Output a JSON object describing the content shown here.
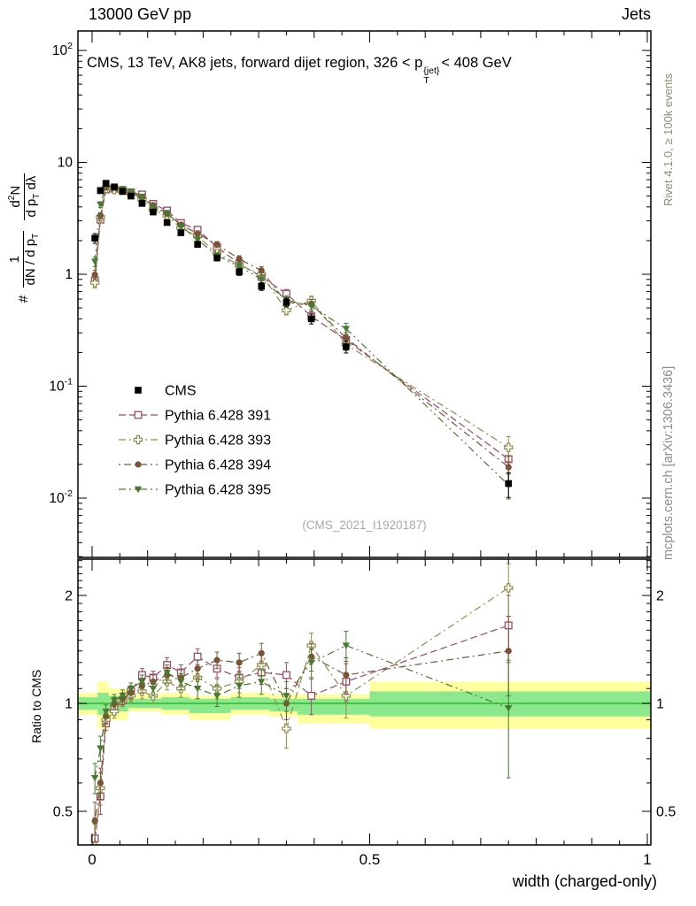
{
  "header": {
    "left": "13000 GeV pp",
    "right": "Jets"
  },
  "title": {
    "prefix": "CMS, 13 TeV, AK8 jets, forward dijet region, 326 < p",
    "sup": "{jet}",
    "sub": "T",
    "suffix": "< 408 GeV"
  },
  "watermark": "(CMS_2021_I1920187)",
  "side_labels": {
    "rivet": "Rivet 4.1.0, ≥ 100k events",
    "mcplots": "mcplots.cern.ch [arXiv:1306.3436]"
  },
  "axes": {
    "x_title": "width (charged-only)",
    "ratio_y_title": "Ratio to CMS",
    "main_y_label": {
      "prefix": "#",
      "f1num": "1",
      "f1den": "dN / d p",
      "f1den_sub": "T",
      "f2num": "d",
      "f2num_sup": "2",
      "f2num_b": "N",
      "f2den": "d p",
      "f2den_sub": "T",
      "f2den_b": " dλ"
    }
  },
  "chart_data": [
    {
      "type": "scatter",
      "panel": "main",
      "title": "CMS, 13 TeV, AK8 jets, forward dijet region, 326 < pT^{jet} < 408 GeV",
      "xlabel": "width (charged-only)",
      "ylabel": "# 1/(dN/dpT) d2N/(dpT dλ)",
      "yscale": "log",
      "xlim": [
        -0.0255,
        1.0064
      ],
      "ylim": [
        0.003,
        148
      ],
      "xticks": [
        {
          "v": 0,
          "label": "0"
        },
        {
          "v": 0.5,
          "label": "0.5"
        },
        {
          "v": 1,
          "label": "1"
        }
      ],
      "yticks": [
        {
          "v": 100,
          "label": "10^2"
        },
        {
          "v": 10,
          "label": "10"
        },
        {
          "v": 1,
          "label": "1"
        },
        {
          "v": 0.1,
          "label": "10^-1"
        },
        {
          "v": 0.01,
          "label": "10^-2"
        }
      ],
      "x": [
        0.005,
        0.015,
        0.025,
        0.04,
        0.055,
        0.07,
        0.09,
        0.11,
        0.135,
        0.16,
        0.19,
        0.225,
        0.265,
        0.305,
        0.35,
        0.395,
        0.4575,
        0.75
      ],
      "err_frac": [
        0.1,
        0.06,
        0.04,
        0.04,
        0.04,
        0.04,
        0.04,
        0.05,
        0.05,
        0.05,
        0.06,
        0.06,
        0.07,
        0.08,
        0.09,
        0.1,
        0.12,
        0.25
      ],
      "series": [
        {
          "name": "CMS",
          "color": "#000000",
          "marker": "square-filled",
          "dash": null,
          "values": [
            2.1,
            5.6,
            6.5,
            6.0,
            5.5,
            5.0,
            4.3,
            3.6,
            2.9,
            2.35,
            1.85,
            1.4,
            1.05,
            0.78,
            0.56,
            0.4,
            0.225,
            0.0135
          ]
        },
        {
          "name": "Pythia 6.428 391",
          "color": "#9a4a66",
          "marker": "square-open",
          "dash": "8,4",
          "values": [
            0.88,
            3.08,
            5.72,
            5.82,
            5.61,
            5.4,
            5.16,
            4.25,
            3.71,
            2.87,
            2.5,
            1.75,
            1.24,
            0.95,
            0.67,
            0.42,
            0.259,
            0.0223
          ]
        },
        {
          "name": "Pythia 6.428 393",
          "color": "#8e8e4a",
          "marker": "cross-open",
          "dash": "8,4,2,4",
          "values": [
            0.84,
            3.25,
            5.85,
            5.7,
            5.61,
            5.25,
            4.64,
            3.78,
            3.34,
            2.59,
            2.18,
            1.54,
            1.21,
            1.0,
            0.476,
            0.58,
            0.236,
            0.0284
          ]
        },
        {
          "name": "Pythia 6.428 394",
          "color": "#7a5436",
          "marker": "circle-filled",
          "dash": "2,4,8,4",
          "values": [
            0.99,
            3.36,
            5.98,
            6.0,
            5.67,
            5.35,
            4.82,
            4.14,
            3.48,
            2.77,
            2.31,
            1.85,
            1.37,
            1.08,
            0.56,
            0.54,
            0.27,
            0.0189
          ]
        },
        {
          "name": "Pythia 6.428 395",
          "color": "#477a33",
          "marker": "triangle-down-filled",
          "dash": "8,4,2,4,2,4",
          "values": [
            1.3,
            4.2,
            6.18,
            6.12,
            5.78,
            5.5,
            4.95,
            3.96,
            3.54,
            2.7,
            2.04,
            1.47,
            1.18,
            0.9,
            0.59,
            0.52,
            0.326,
            0.0131
          ]
        }
      ]
    },
    {
      "type": "scatter",
      "panel": "ratio",
      "ylabel": "Ratio to CMS",
      "yscale": "log",
      "ylim": [
        0.403,
        2.52
      ],
      "yticks": [
        {
          "v": 2,
          "label": "2"
        },
        {
          "v": 1,
          "label": "1"
        },
        {
          "v": 0.5,
          "label": "0.5"
        }
      ],
      "err": [
        0.06,
        0.06,
        0.04,
        0.04,
        0.04,
        0.04,
        0.05,
        0.05,
        0.06,
        0.06,
        0.07,
        0.07,
        0.08,
        0.09,
        0.1,
        0.12,
        0.14,
        0.35
      ],
      "bands": {
        "yellow": "#ffff9e",
        "green": "#8ce88c",
        "line": "#2eb82e",
        "segments": [
          {
            "x0": -0.03,
            "x1": 0.01,
            "y_lo": 0.93,
            "y_hi": 1.07,
            "g_lo": 0.96,
            "g_hi": 1.04
          },
          {
            "x0": 0.01,
            "x1": 0.03,
            "y_lo": 0.85,
            "y_hi": 1.15,
            "g_lo": 0.93,
            "g_hi": 1.07
          },
          {
            "x0": 0.03,
            "x1": 0.065,
            "y_lo": 0.9,
            "y_hi": 1.1,
            "g_lo": 0.95,
            "g_hi": 1.05
          },
          {
            "x0": 0.065,
            "x1": 0.125,
            "y_lo": 0.95,
            "y_hi": 1.06,
            "g_lo": 0.97,
            "g_hi": 1.03
          },
          {
            "x0": 0.125,
            "x1": 0.175,
            "y_lo": 0.93,
            "y_hi": 1.07,
            "g_lo": 0.96,
            "g_hi": 1.04
          },
          {
            "x0": 0.175,
            "x1": 0.25,
            "y_lo": 0.9,
            "y_hi": 1.05,
            "g_lo": 0.94,
            "g_hi": 1.03
          },
          {
            "x0": 0.25,
            "x1": 0.32,
            "y_lo": 0.93,
            "y_hi": 1.07,
            "g_lo": 0.96,
            "g_hi": 1.04
          },
          {
            "x0": 0.32,
            "x1": 0.37,
            "y_lo": 0.92,
            "y_hi": 1.06,
            "g_lo": 0.95,
            "g_hi": 1.03
          },
          {
            "x0": 0.37,
            "x1": 0.5,
            "y_lo": 0.88,
            "y_hi": 1.06,
            "g_lo": 0.93,
            "g_hi": 1.03
          },
          {
            "x0": 0.5,
            "x1": 1.01,
            "y_lo": 0.85,
            "y_hi": 1.15,
            "g_lo": 0.92,
            "g_hi": 1.08
          }
        ]
      },
      "series": [
        {
          "name": "Pythia 6.428 391",
          "ratios": [
            0.42,
            0.55,
            0.88,
            0.97,
            1.02,
            1.08,
            1.2,
            1.18,
            1.28,
            1.22,
            1.35,
            1.25,
            1.18,
            1.22,
            1.2,
            1.05,
            1.15,
            1.65
          ]
        },
        {
          "name": "Pythia 6.428 393",
          "ratios": [
            0.4,
            0.58,
            0.9,
            0.95,
            1.02,
            1.05,
            1.08,
            1.05,
            1.15,
            1.1,
            1.18,
            1.1,
            1.15,
            1.28,
            0.85,
            1.45,
            1.05,
            2.1
          ]
        },
        {
          "name": "Pythia 6.428 394",
          "ratios": [
            0.47,
            0.6,
            0.92,
            1.0,
            1.03,
            1.07,
            1.12,
            1.15,
            1.2,
            1.18,
            1.25,
            1.32,
            1.3,
            1.38,
            1.0,
            1.35,
            1.2,
            1.4
          ]
        },
        {
          "name": "Pythia 6.428 395",
          "ratios": [
            0.62,
            0.75,
            0.95,
            1.02,
            1.05,
            1.1,
            1.15,
            1.1,
            1.22,
            1.15,
            1.1,
            1.05,
            1.12,
            1.15,
            1.05,
            1.3,
            1.45,
            0.97
          ]
        }
      ]
    }
  ]
}
